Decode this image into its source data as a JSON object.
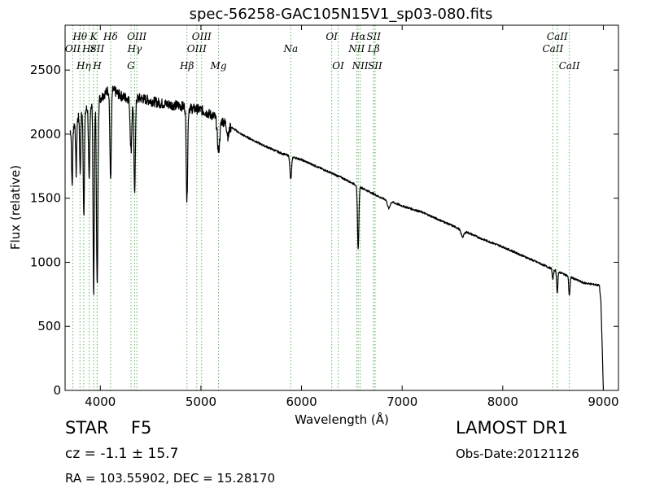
{
  "chart_data": {
    "type": "line",
    "title": "spec-56258-GAC105N15V1_sp03-080.fits",
    "xlabel": "Wavelength (Å)",
    "ylabel": "Flux (relative)",
    "xlim": [
      3650,
      9150
    ],
    "ylim": [
      0,
      2850
    ],
    "xticks": [
      4000,
      5000,
      6000,
      7000,
      8000,
      9000
    ],
    "yticks": [
      0,
      500,
      1000,
      1500,
      2000,
      2500
    ],
    "grid": false,
    "colors": {
      "spectrum": "#000000",
      "lines": "#5cb85c"
    },
    "continuum": {
      "x": [
        3700,
        3750,
        3800,
        3900,
        4000,
        4100,
        4200,
        4300,
        4400,
        4500,
        4600,
        4700,
        4800,
        4900,
        5000,
        5200,
        5400,
        5600,
        5800,
        6000,
        6200,
        6400,
        6600,
        6800,
        7000,
        7200,
        7400,
        7600,
        7800,
        8000,
        8200,
        8400,
        8600,
        8800,
        8960,
        8975,
        8990,
        9000
      ],
      "y": [
        2020,
        2080,
        2150,
        2220,
        2280,
        2360,
        2300,
        2270,
        2280,
        2260,
        2240,
        2230,
        2220,
        2200,
        2190,
        2110,
        2000,
        1920,
        1850,
        1800,
        1730,
        1660,
        1580,
        1500,
        1440,
        1390,
        1320,
        1250,
        1180,
        1120,
        1050,
        980,
        910,
        840,
        820,
        700,
        300,
        0
      ]
    },
    "absorption_features": [
      {
        "center": 3720,
        "depth": 450,
        "width": 5
      },
      {
        "center": 3760,
        "depth": 400,
        "width": 5
      },
      {
        "center": 3800,
        "depth": 450,
        "width": 5
      },
      {
        "center": 3836,
        "depth": 800,
        "width": 6
      },
      {
        "center": 3889,
        "depth": 600,
        "width": 6
      },
      {
        "center": 3934,
        "depth": 1480,
        "width": 6
      },
      {
        "center": 3969,
        "depth": 1450,
        "width": 7
      },
      {
        "center": 4102,
        "depth": 700,
        "width": 7
      },
      {
        "center": 4305,
        "depth": 400,
        "width": 8
      },
      {
        "center": 4341,
        "depth": 740,
        "width": 7
      },
      {
        "center": 4861,
        "depth": 730,
        "width": 7
      },
      {
        "center": 5175,
        "depth": 250,
        "width": 12
      },
      {
        "center": 5270,
        "depth": 90,
        "width": 10
      },
      {
        "center": 5893,
        "depth": 180,
        "width": 8
      },
      {
        "center": 6563,
        "depth": 490,
        "width": 7
      },
      {
        "center": 6867,
        "depth": 60,
        "width": 12
      },
      {
        "center": 7600,
        "depth": 50,
        "width": 15
      },
      {
        "center": 8498,
        "depth": 80,
        "width": 6
      },
      {
        "center": 8542,
        "depth": 170,
        "width": 6
      },
      {
        "center": 8662,
        "depth": 150,
        "width": 6
      }
    ],
    "spectral_lines": [
      {
        "label": "OII",
        "wavelength": 3727,
        "row": 2
      },
      {
        "label": "Hθ",
        "wavelength": 3798,
        "row": 1
      },
      {
        "label": "Hη",
        "wavelength": 3835,
        "row": 3
      },
      {
        "label": "Hε",
        "wavelength": 3889,
        "row": 2
      },
      {
        "label": "K",
        "wavelength": 3934,
        "row": 1
      },
      {
        "label": "SII",
        "wavelength": 3969,
        "row": 2
      },
      {
        "label": "H",
        "wavelength": 3969,
        "row": 3
      },
      {
        "label": "Hδ",
        "wavelength": 4102,
        "row": 1
      },
      {
        "label": "G",
        "wavelength": 4305,
        "row": 3
      },
      {
        "label": "Hγ",
        "wavelength": 4341,
        "row": 2
      },
      {
        "label": "OIII",
        "wavelength": 4363,
        "row": 1
      },
      {
        "label": "Hβ",
        "wavelength": 4861,
        "row": 3
      },
      {
        "label": "OIII",
        "wavelength": 4959,
        "row": 2
      },
      {
        "label": "OIII",
        "wavelength": 5007,
        "row": 1
      },
      {
        "label": "Mg",
        "wavelength": 5175,
        "row": 3
      },
      {
        "label": "Na",
        "wavelength": 5893,
        "row": 2
      },
      {
        "label": "OI",
        "wavelength": 6300,
        "row": 1
      },
      {
        "label": "OI",
        "wavelength": 6364,
        "row": 3
      },
      {
        "label": "NII",
        "wavelength": 6548,
        "row": 2
      },
      {
        "label": "Hα",
        "wavelength": 6563,
        "row": 1
      },
      {
        "label": "NII",
        "wavelength": 6583,
        "row": 3
      },
      {
        "label": "Lβ",
        "wavelength": 6717,
        "row": 2
      },
      {
        "label": "SII",
        "wavelength": 6717,
        "row": 1
      },
      {
        "label": "SII",
        "wavelength": 6731,
        "row": 3
      },
      {
        "label": "CaII",
        "wavelength": 8498,
        "row": 2
      },
      {
        "label": "CaII",
        "wavelength": 8542,
        "row": 1
      },
      {
        "label": "CaII",
        "wavelength": 8662,
        "row": 3
      }
    ]
  },
  "info": {
    "class": "STAR",
    "subclass": "F5",
    "redshift": "cz = -1.1  ± 15.7",
    "coords": "RA = 103.55902, DEC = 15.28170",
    "survey": "LAMOST DR1",
    "obs_date": "Obs-Date:20121126"
  }
}
